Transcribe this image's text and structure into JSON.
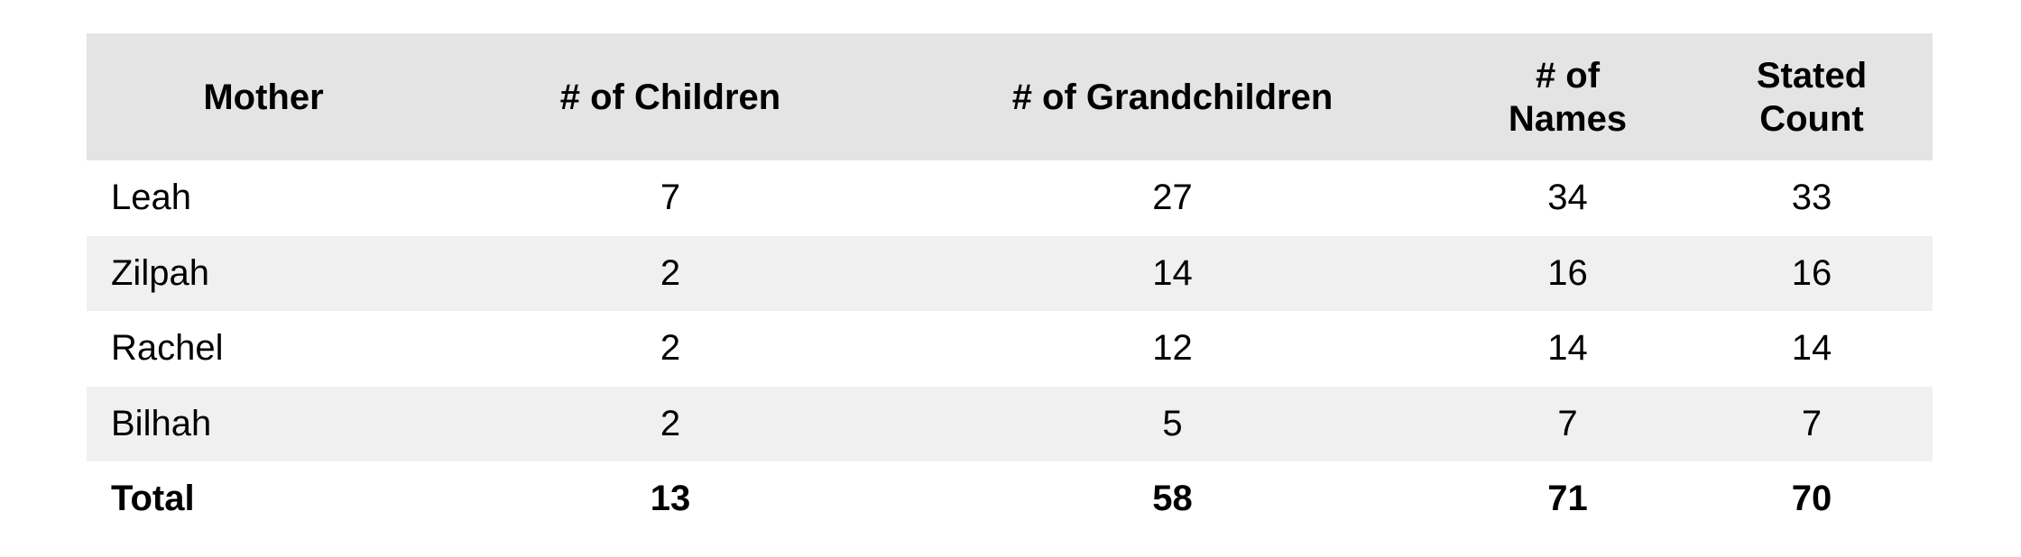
{
  "table": {
    "headers": [
      "Mother",
      "# of Children",
      "# of Grandchildren",
      "# of Names",
      "Stated Count"
    ],
    "rows": [
      [
        "Leah",
        7,
        27,
        34,
        33
      ],
      [
        "Zilpah",
        2,
        14,
        16,
        16
      ],
      [
        "Rachel",
        2,
        12,
        14,
        14
      ],
      [
        "Bilhah",
        2,
        5,
        7,
        7
      ],
      [
        "Total",
        13,
        58,
        71,
        70
      ]
    ]
  }
}
